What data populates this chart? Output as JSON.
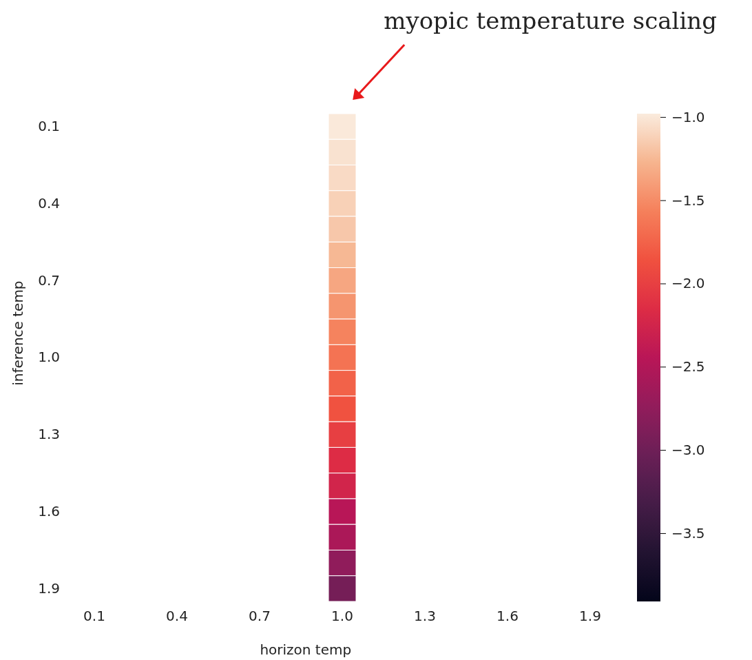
{
  "chart_data": {
    "type": "heatmap",
    "xlabel": "horizon temp",
    "ylabel": "inference temp",
    "categories": [
      "0.1",
      null,
      null,
      "0.4",
      null,
      null,
      "0.7",
      null,
      null,
      "1.0",
      null,
      null,
      "1.3",
      null,
      null,
      "1.6",
      null,
      null,
      "1.9"
    ],
    "y_categories": [
      "0.1",
      null,
      null,
      "0.4",
      null,
      null,
      "0.7",
      null,
      null,
      "1.0",
      null,
      null,
      "1.3",
      null,
      null,
      "1.6",
      null,
      null,
      "1.9"
    ],
    "cells": [
      [
        null,
        null,
        null,
        null,
        null,
        null,
        null,
        null,
        null,
        -0.99,
        null,
        null,
        null,
        null,
        null,
        null,
        null,
        null,
        null
      ],
      [
        null,
        null,
        null,
        null,
        null,
        null,
        null,
        null,
        null,
        -1.03,
        null,
        null,
        null,
        null,
        null,
        null,
        null,
        null,
        null
      ],
      [
        null,
        null,
        null,
        null,
        null,
        null,
        null,
        null,
        null,
        -1.07,
        null,
        null,
        null,
        null,
        null,
        null,
        null,
        null,
        null
      ],
      [
        null,
        null,
        null,
        null,
        null,
        null,
        null,
        null,
        null,
        -1.12,
        null,
        null,
        null,
        null,
        null,
        null,
        null,
        null,
        null
      ],
      [
        null,
        null,
        null,
        null,
        null,
        null,
        null,
        null,
        null,
        -1.17,
        null,
        null,
        null,
        null,
        null,
        null,
        null,
        null,
        null
      ],
      [
        null,
        null,
        null,
        null,
        null,
        null,
        null,
        null,
        null,
        -1.25,
        null,
        null,
        null,
        null,
        null,
        null,
        null,
        null,
        null
      ],
      [
        null,
        null,
        null,
        null,
        null,
        null,
        null,
        null,
        null,
        -1.35,
        null,
        null,
        null,
        null,
        null,
        null,
        null,
        null,
        null
      ],
      [
        null,
        null,
        null,
        null,
        null,
        null,
        null,
        null,
        null,
        -1.45,
        null,
        null,
        null,
        null,
        null,
        null,
        null,
        null,
        null
      ],
      [
        null,
        null,
        null,
        null,
        null,
        null,
        null,
        null,
        null,
        -1.55,
        null,
        null,
        null,
        null,
        null,
        null,
        null,
        null,
        null
      ],
      [
        null,
        null,
        null,
        null,
        null,
        null,
        null,
        null,
        null,
        -1.65,
        null,
        null,
        null,
        null,
        null,
        null,
        null,
        null,
        null
      ],
      [
        null,
        null,
        null,
        null,
        null,
        null,
        null,
        null,
        null,
        -1.75,
        null,
        null,
        null,
        null,
        null,
        null,
        null,
        null,
        null
      ],
      [
        null,
        null,
        null,
        null,
        null,
        null,
        null,
        null,
        null,
        -1.85,
        null,
        null,
        null,
        null,
        null,
        null,
        null,
        null,
        null
      ],
      [
        null,
        null,
        null,
        null,
        null,
        null,
        null,
        null,
        null,
        -2.0,
        null,
        null,
        null,
        null,
        null,
        null,
        null,
        null,
        null
      ],
      [
        null,
        null,
        null,
        null,
        null,
        null,
        null,
        null,
        null,
        -2.15,
        null,
        null,
        null,
        null,
        null,
        null,
        null,
        null,
        null
      ],
      [
        null,
        null,
        null,
        null,
        null,
        null,
        null,
        null,
        null,
        -2.25,
        null,
        null,
        null,
        null,
        null,
        null,
        null,
        null,
        null
      ],
      [
        null,
        null,
        null,
        null,
        null,
        null,
        null,
        null,
        null,
        -2.45,
        null,
        null,
        null,
        null,
        null,
        null,
        null,
        null,
        null
      ],
      [
        null,
        null,
        null,
        null,
        null,
        null,
        null,
        null,
        null,
        -2.55,
        null,
        null,
        null,
        null,
        null,
        null,
        null,
        null,
        null
      ],
      [
        null,
        null,
        null,
        null,
        null,
        null,
        null,
        null,
        null,
        -2.75,
        null,
        null,
        null,
        null,
        null,
        null,
        null,
        null,
        null
      ],
      [
        null,
        null,
        null,
        null,
        null,
        null,
        null,
        null,
        null,
        -2.95,
        null,
        null,
        null,
        null,
        null,
        null,
        null,
        null,
        null
      ]
    ],
    "clim": [
      -3.91,
      -0.98
    ],
    "cticks": [
      {
        "value": -1.0,
        "label": "−1.0"
      },
      {
        "value": -1.5,
        "label": "−1.5"
      },
      {
        "value": -2.0,
        "label": "−2.0"
      },
      {
        "value": -2.5,
        "label": "−2.5"
      },
      {
        "value": -3.0,
        "label": "−3.0"
      },
      {
        "value": -3.5,
        "label": "−3.5"
      }
    ],
    "annotations": [
      "myopic temperature scaling"
    ]
  }
}
